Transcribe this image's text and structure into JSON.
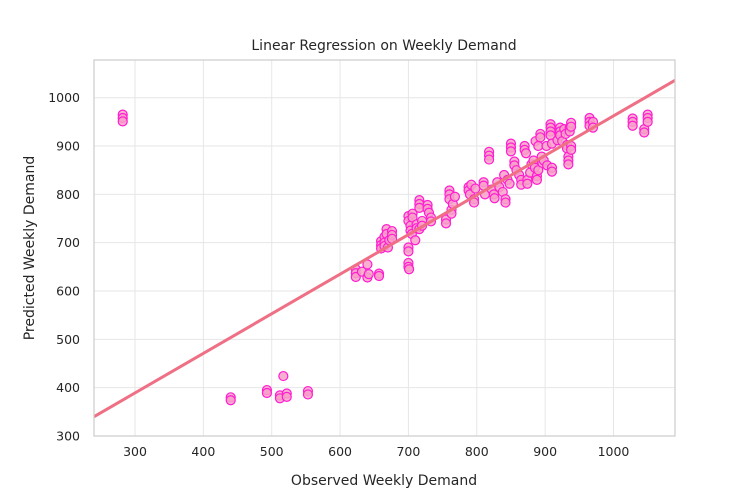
{
  "chart_data": {
    "type": "scatter",
    "title": "Linear Regression on Weekly Demand",
    "xlabel": "Observed Weekly Demand",
    "ylabel": "Predicted Weekly Demand",
    "xlim": [
      240,
      1090
    ],
    "ylim": [
      300,
      1078
    ],
    "xticks": [
      300,
      400,
      500,
      600,
      700,
      800,
      900,
      1000
    ],
    "yticks": [
      300,
      400,
      500,
      600,
      700,
      800,
      900,
      1000
    ],
    "grid": true,
    "colors": {
      "point_fill": "#f7a1c8",
      "point_edge": "#ff1cd1",
      "fit_line": "#ef6f85"
    },
    "fit_line": {
      "x": [
        240,
        1090
      ],
      "y": [
        340,
        1036
      ]
    },
    "series": [
      {
        "points": [
          [
            282,
            965
          ],
          [
            282,
            958
          ],
          [
            282,
            951
          ],
          [
            440,
            380
          ],
          [
            440,
            374
          ],
          [
            493,
            395
          ],
          [
            493,
            389
          ],
          [
            512,
            384
          ],
          [
            512,
            378
          ],
          [
            517,
            424
          ],
          [
            522,
            388
          ],
          [
            522,
            381
          ],
          [
            553,
            393
          ],
          [
            553,
            386
          ],
          [
            623,
            645
          ],
          [
            623,
            637
          ],
          [
            623,
            629
          ],
          [
            632,
            640
          ],
          [
            640,
            655
          ],
          [
            640,
            628
          ],
          [
            642,
            635
          ],
          [
            657,
            636
          ],
          [
            657,
            631
          ],
          [
            660,
            703
          ],
          [
            660,
            695
          ],
          [
            660,
            688
          ],
          [
            665,
            712
          ],
          [
            665,
            700
          ],
          [
            665,
            693
          ],
          [
            668,
            728
          ],
          [
            668,
            718
          ],
          [
            670,
            690
          ],
          [
            672,
            705
          ],
          [
            676,
            724
          ],
          [
            676,
            716
          ],
          [
            676,
            708
          ],
          [
            700,
            755
          ],
          [
            700,
            745
          ],
          [
            700,
            690
          ],
          [
            700,
            682
          ],
          [
            700,
            658
          ],
          [
            700,
            650
          ],
          [
            701,
            645
          ],
          [
            703,
            735
          ],
          [
            703,
            725
          ],
          [
            705,
            718
          ],
          [
            706,
            760
          ],
          [
            706,
            752
          ],
          [
            710,
            705
          ],
          [
            712,
            738
          ],
          [
            712,
            730
          ],
          [
            716,
            788
          ],
          [
            716,
            780
          ],
          [
            716,
            772
          ],
          [
            716,
            728
          ],
          [
            720,
            745
          ],
          [
            720,
            735
          ],
          [
            728,
            778
          ],
          [
            728,
            770
          ],
          [
            730,
            762
          ],
          [
            733,
            752
          ],
          [
            733,
            744
          ],
          [
            755,
            748
          ],
          [
            755,
            740
          ],
          [
            760,
            808
          ],
          [
            760,
            800
          ],
          [
            760,
            790
          ],
          [
            763,
            768
          ],
          [
            763,
            760
          ],
          [
            765,
            780
          ],
          [
            768,
            795
          ],
          [
            788,
            815
          ],
          [
            788,
            808
          ],
          [
            790,
            800
          ],
          [
            792,
            820
          ],
          [
            796,
            790
          ],
          [
            796,
            783
          ],
          [
            798,
            812
          ],
          [
            810,
            825
          ],
          [
            810,
            818
          ],
          [
            812,
            800
          ],
          [
            818,
            888
          ],
          [
            818,
            880
          ],
          [
            818,
            872
          ],
          [
            822,
            810
          ],
          [
            825,
            800
          ],
          [
            826,
            792
          ],
          [
            830,
            825
          ],
          [
            833,
            815
          ],
          [
            838,
            805
          ],
          [
            840,
            840
          ],
          [
            842,
            790
          ],
          [
            842,
            783
          ],
          [
            845,
            830
          ],
          [
            848,
            822
          ],
          [
            850,
            905
          ],
          [
            850,
            897
          ],
          [
            850,
            889
          ],
          [
            855,
            868
          ],
          [
            855,
            860
          ],
          [
            858,
            850
          ],
          [
            862,
            840
          ],
          [
            865,
            830
          ],
          [
            865,
            820
          ],
          [
            870,
            900
          ],
          [
            870,
            892
          ],
          [
            872,
            885
          ],
          [
            874,
            830
          ],
          [
            874,
            822
          ],
          [
            878,
            845
          ],
          [
            880,
            862
          ],
          [
            883,
            870
          ],
          [
            885,
            855
          ],
          [
            886,
            910
          ],
          [
            888,
            838
          ],
          [
            888,
            830
          ],
          [
            890,
            900
          ],
          [
            890,
            850
          ],
          [
            893,
            925
          ],
          [
            893,
            918
          ],
          [
            895,
            878
          ],
          [
            896,
            865
          ],
          [
            898,
            870
          ],
          [
            902,
            900
          ],
          [
            903,
            860
          ],
          [
            908,
            945
          ],
          [
            908,
            938
          ],
          [
            908,
            930
          ],
          [
            908,
            922
          ],
          [
            910,
            905
          ],
          [
            910,
            855
          ],
          [
            910,
            847
          ],
          [
            918,
            912
          ],
          [
            922,
            938
          ],
          [
            922,
            930
          ],
          [
            922,
            922
          ],
          [
            925,
            910
          ],
          [
            928,
            935
          ],
          [
            930,
            925
          ],
          [
            932,
            902
          ],
          [
            932,
            895
          ],
          [
            934,
            878
          ],
          [
            934,
            870
          ],
          [
            934,
            862
          ],
          [
            936,
            938
          ],
          [
            936,
            930
          ],
          [
            938,
            900
          ],
          [
            938,
            892
          ],
          [
            938,
            948
          ],
          [
            938,
            940
          ],
          [
            965,
            958
          ],
          [
            965,
            950
          ],
          [
            965,
            942
          ],
          [
            970,
            950
          ],
          [
            970,
            938
          ],
          [
            1028,
            957
          ],
          [
            1028,
            950
          ],
          [
            1028,
            942
          ],
          [
            1045,
            935
          ],
          [
            1045,
            928
          ],
          [
            1050,
            965
          ],
          [
            1050,
            958
          ],
          [
            1050,
            950
          ]
        ]
      }
    ]
  }
}
